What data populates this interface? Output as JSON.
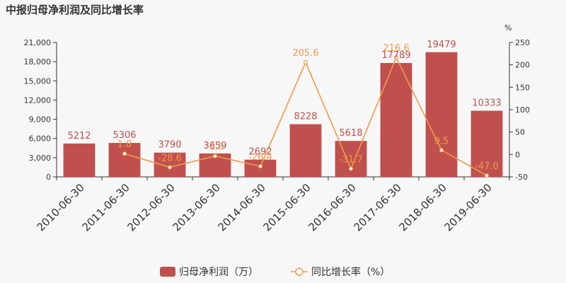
{
  "chart_data": {
    "type": "bar",
    "title": "中报归母净利润及同比增长率",
    "categories": [
      "2010-06-30",
      "2011-06-30",
      "2012-06-30",
      "2013-06-30",
      "2014-06-30",
      "2015-06-30",
      "2016-06-30",
      "2017-06-30",
      "2018-06-30",
      "2019-06-30"
    ],
    "series": [
      {
        "name": "归母净利润（万）",
        "type": "bar",
        "axis": "left",
        "color": "#c0504d",
        "values": [
          5212,
          5306,
          3790,
          3659,
          2692,
          8228,
          5618,
          17789,
          19479,
          10333
        ],
        "labels": [
          "5212",
          "5306",
          "3790",
          "3659",
          "2692",
          "8228",
          "5618",
          "17789",
          "19479",
          "10333"
        ]
      },
      {
        "name": "同比增长率（%）",
        "type": "line",
        "axis": "right",
        "color": "#f09a4a",
        "values": [
          null,
          1.8,
          -28.6,
          -3.5,
          -26.4,
          205.6,
          -31.7,
          216.6,
          9.5,
          -47.0
        ],
        "labels": [
          "",
          "1.8",
          "-28.6",
          "-3.5",
          "-26.4",
          "205.6",
          "-31.7",
          "216.6",
          "9.5",
          "-47.0"
        ]
      }
    ],
    "y_left": {
      "min": 0,
      "max": 21000,
      "ticks": [
        0,
        3000,
        6000,
        9000,
        12000,
        15000,
        18000,
        21000
      ],
      "tick_labels": [
        "0",
        "3,000",
        "6,000",
        "9,000",
        "12,000",
        "15,000",
        "18,000",
        "21,000"
      ]
    },
    "y_right": {
      "label": "%",
      "min": -50,
      "max": 250,
      "ticks": [
        -50,
        0,
        50,
        100,
        150,
        200,
        250
      ],
      "tick_labels": [
        "-50",
        "0",
        "50",
        "100",
        "150",
        "200",
        "250"
      ]
    },
    "legend": {
      "position": "bottom-center"
    },
    "grid": false
  }
}
